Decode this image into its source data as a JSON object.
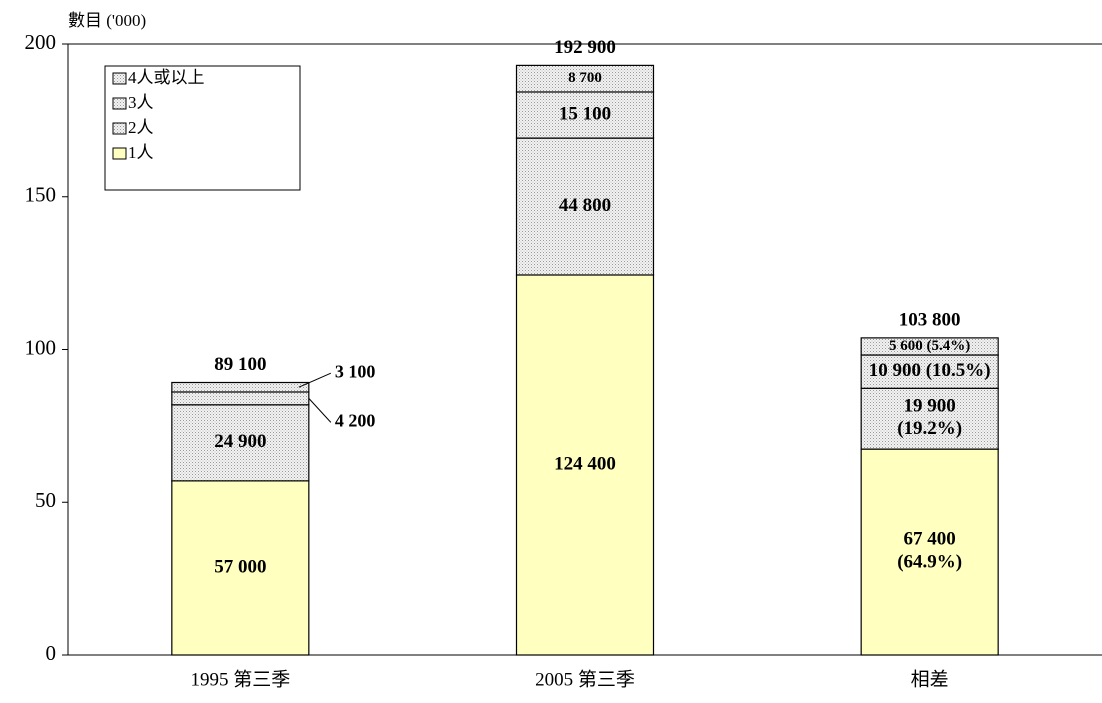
{
  "chart_data": {
    "type": "stacked_bar",
    "y_label": "數目 ('000)",
    "categories": [
      "1995 第三季",
      "2005 第三季",
      "相差"
    ],
    "series": [
      {
        "name": "1人",
        "color": "#ffffc0",
        "values": [
          57.0,
          124.4,
          67.4
        ],
        "value_labels": [
          "57 000",
          "124 400",
          "67 400 (64.9%)"
        ]
      },
      {
        "name": "2人",
        "color": "#e4e4e4",
        "values": [
          24.9,
          44.8,
          19.9
        ],
        "value_labels": [
          "24 900",
          "44 800",
          "19 900 (19.2%)"
        ]
      },
      {
        "name": "3人",
        "color": "#e4e4e4",
        "values": [
          4.2,
          15.1,
          10.9
        ],
        "value_labels": [
          "4 200",
          "15 100",
          "10 900 (10.5%)"
        ]
      },
      {
        "name": "4人或以上",
        "color": "#e4e4e4",
        "values": [
          3.1,
          8.7,
          5.6
        ],
        "value_labels": [
          "3 100",
          "8 700",
          "5 600 (5.4%)"
        ]
      }
    ],
    "totals": {
      "values": [
        89.1,
        192.9,
        103.8
      ],
      "value_labels": [
        "89 100",
        "192 900",
        "103 800"
      ]
    },
    "ylim": [
      0,
      200
    ],
    "yticks": [
      0,
      50,
      100,
      150,
      200
    ],
    "legend": "upper left"
  }
}
